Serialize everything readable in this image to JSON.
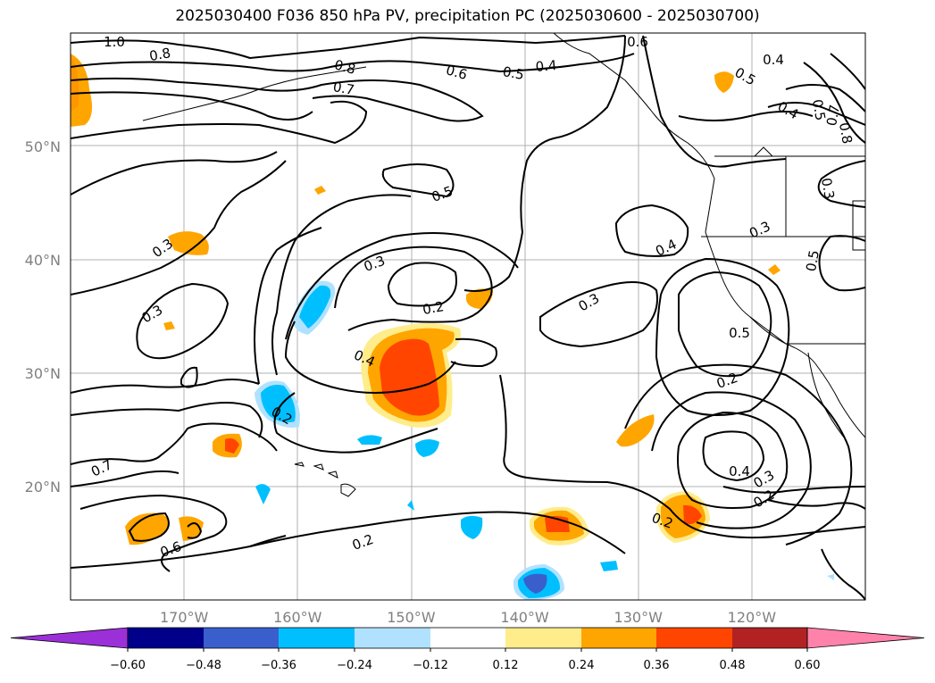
{
  "title": "2025030400 F036 850 hPa PV, precipitation PC (2025030600 - 2025030700)",
  "map": {
    "lat_ticks": [
      {
        "label": "50°N",
        "lat": 50
      },
      {
        "label": "40°N",
        "lat": 40
      },
      {
        "label": "30°N",
        "lat": 30
      },
      {
        "label": "20°N",
        "lat": 20
      }
    ],
    "lon_ticks": [
      {
        "label": "170°W",
        "lon": -170
      },
      {
        "label": "160°W",
        "lon": -160
      },
      {
        "label": "150°W",
        "lon": -150
      },
      {
        "label": "140°W",
        "lon": -140
      },
      {
        "label": "130°W",
        "lon": -130
      },
      {
        "label": "120°W",
        "lon": -120
      }
    ],
    "extent": {
      "lon_min": -180,
      "lon_max": -110,
      "lat_min": 10,
      "lat_max": 60
    },
    "grid": true,
    "contour_labels": [
      "1.0",
      "0.8",
      "0.8",
      "0.7",
      "0.6",
      "0.5",
      "0.4",
      "0.6",
      "0.4",
      "0.5",
      "0.4",
      "0.5",
      "0.7",
      "0.8",
      "0.5",
      "0.3",
      "0.3",
      "0.2",
      "0.3",
      "0.3",
      "0.4",
      "0.3",
      "0.3",
      "0.5",
      "0.5",
      "0.4",
      "0.2",
      "0.2",
      "0.7",
      "0.6",
      "0.4",
      "0.3",
      "0.2",
      "0.2"
    ]
  },
  "colorbar": {
    "ticks": [
      "−0.60",
      "−0.48",
      "−0.36",
      "−0.24",
      "−0.12",
      "0.12",
      "0.24",
      "0.36",
      "0.48",
      "0.60"
    ],
    "colors": {
      "under": "#9b30d9",
      "bins": [
        "#00008b",
        "#3a5fcd",
        "#00bfff",
        "#b0e2ff",
        "#ffffff",
        "#ffec8b",
        "#ffa500",
        "#ff4500",
        "#b22222"
      ],
      "over": "#ff82ab"
    }
  }
}
